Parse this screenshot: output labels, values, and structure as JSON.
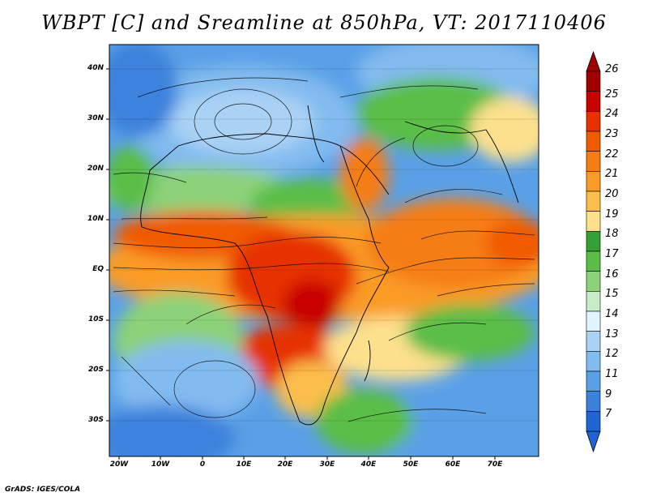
{
  "title": "WBPT [C] and Sreamline at 850hPa, VT: 2017110406",
  "lat_labels": [
    "40N",
    "30N",
    "20N",
    "10N",
    "EQ",
    "10S",
    "20S",
    "30S"
  ],
  "lon_labels": [
    "20W",
    "10W",
    "0",
    "10E",
    "20E",
    "30E",
    "40E",
    "50E",
    "60E",
    "70E"
  ],
  "colorbar": {
    "labels": [
      "26",
      "25",
      "24",
      "23",
      "22",
      "21",
      "20",
      "19",
      "18",
      "17",
      "16",
      "15",
      "14",
      "13",
      "12",
      "11",
      "9",
      "7"
    ],
    "colors": [
      "#a00000",
      "#c80000",
      "#e63200",
      "#f05a00",
      "#f57d14",
      "#fa9b28",
      "#fbbe4b",
      "#fde08c",
      "#32a032",
      "#5abe46",
      "#8cd278",
      "#c8ebc8",
      "#e1f5ff",
      "#aad2f5",
      "#82bbef",
      "#5aa0e6",
      "#3c82dc",
      "#1e64d2"
    ],
    "max_arrow_color": "#a00000",
    "min_arrow_color": "#1e64d2"
  },
  "credit": "GrADS: IGES/COLA"
}
